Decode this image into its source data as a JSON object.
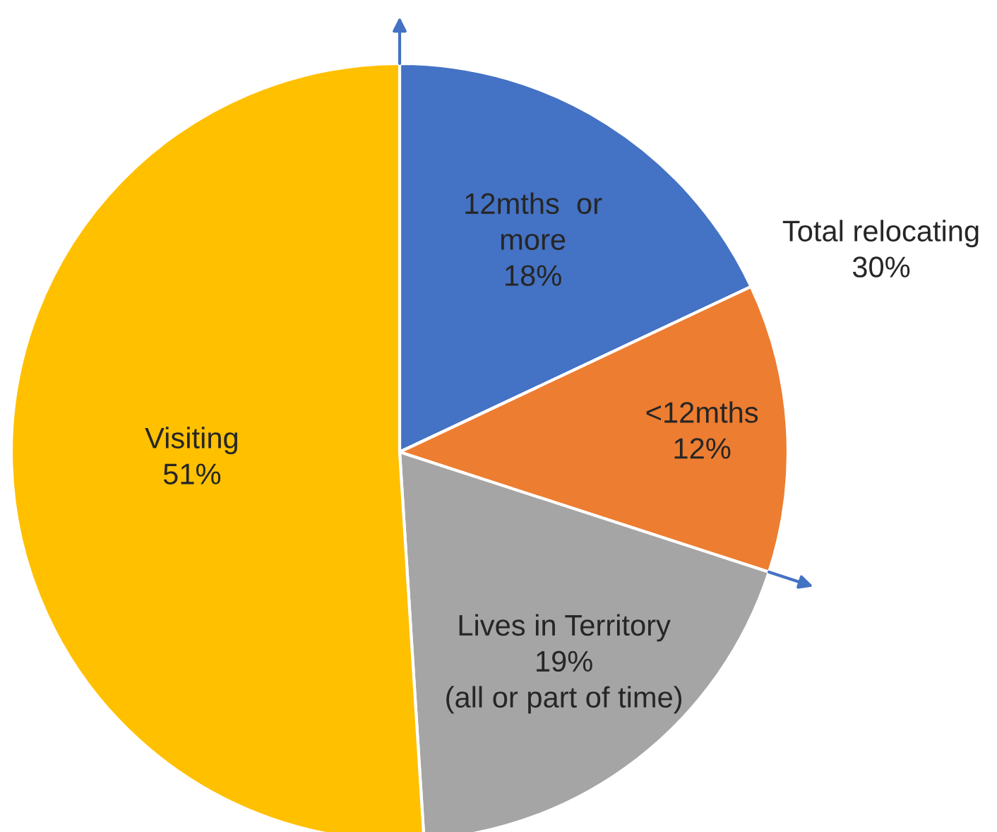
{
  "chart_data": {
    "type": "pie",
    "categories": [
      "12mths  or\nmore",
      "<12mths",
      "Lives in Territory",
      "Visiting"
    ],
    "values": [
      18,
      12,
      19,
      51
    ],
    "colors": [
      "#4472c4",
      "#ed7d31",
      "#a5a5a5",
      "#ffc000"
    ],
    "value_labels": [
      "18%",
      "12%",
      "19%\n(all or part of time)",
      "51%"
    ],
    "annotations": [
      "Total relocating\n30%"
    ]
  }
}
